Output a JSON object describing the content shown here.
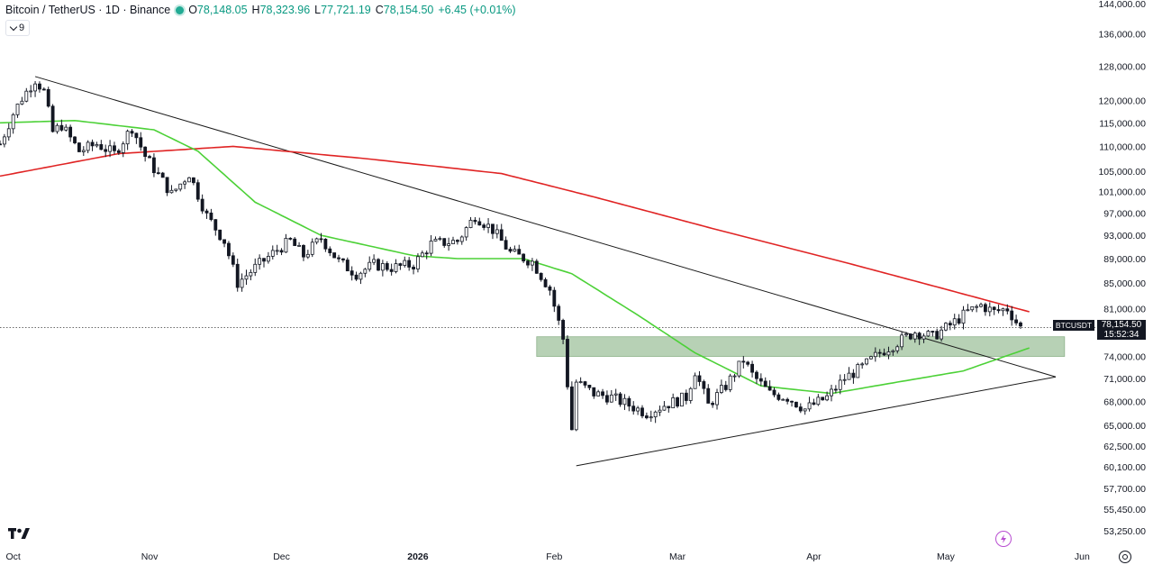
{
  "legend": {
    "title": "Bitcoin / TetherUS · 1D · Binance",
    "open_label": "O",
    "open": "78,148.05",
    "high_label": "H",
    "high": "78,323.96",
    "low_label": "L",
    "low": "77,721.19",
    "close_label": "C",
    "close": "78,154.50",
    "change": "+6.45 (+0.01%)"
  },
  "indicator_toggle": {
    "count": "9"
  },
  "price_tag": {
    "symbol": "BTCUSDT",
    "price": "78,154.50",
    "countdown": "15:52:34"
  },
  "colors": {
    "up": "#089981",
    "down": "#131722",
    "ma_long": "#e02424",
    "ma_short": "#4cd137",
    "zone": "#9fc29c",
    "trendline": "#1a1a1a",
    "accent": "#b84dd1"
  },
  "icons": {
    "logo": "tradingview-logo-icon",
    "quick": "lightning-icon",
    "settings": "gear-icon"
  },
  "chart_data": {
    "type": "candlestick",
    "scale": "log",
    "ylim": [
      52000,
      145000
    ],
    "x_range": [
      "2025-09-28",
      "2026-06-04"
    ],
    "y_ticks": [
      {
        "v": 53250,
        "label": "53,250.00"
      },
      {
        "v": 55450,
        "label": "55,450.00"
      },
      {
        "v": 57700,
        "label": "57,700.00"
      },
      {
        "v": 60100,
        "label": "60,100.00"
      },
      {
        "v": 62500,
        "label": "62,500.00"
      },
      {
        "v": 65000,
        "label": "65,000.00"
      },
      {
        "v": 68000,
        "label": "68,000.00"
      },
      {
        "v": 71000,
        "label": "71,000.00"
      },
      {
        "v": 74000,
        "label": "74,000.00"
      },
      {
        "v": 81000,
        "label": "81,000.00"
      },
      {
        "v": 85000,
        "label": "85,000.00"
      },
      {
        "v": 89000,
        "label": "89,000.00"
      },
      {
        "v": 93000,
        "label": "93,000.00"
      },
      {
        "v": 97000,
        "label": "97,000.00"
      },
      {
        "v": 101000,
        "label": "101,000.00"
      },
      {
        "v": 105000,
        "label": "105,000.00"
      },
      {
        "v": 110000,
        "label": "110,000.00"
      },
      {
        "v": 115000,
        "label": "115,000.00"
      },
      {
        "v": 120000,
        "label": "120,000.00"
      },
      {
        "v": 128000,
        "label": "128,000.00"
      },
      {
        "v": 136000,
        "label": "136,000.00"
      },
      {
        "v": 144000,
        "label": "144,000.00"
      }
    ],
    "x_ticks": [
      {
        "date": "2025-10-01",
        "label": "Oct",
        "bold": false
      },
      {
        "date": "2025-11-01",
        "label": "Nov",
        "bold": false
      },
      {
        "date": "2025-12-01",
        "label": "Dec",
        "bold": false
      },
      {
        "date": "2026-01-01",
        "label": "2026",
        "bold": true
      },
      {
        "date": "2026-02-01",
        "label": "Feb",
        "bold": false
      },
      {
        "date": "2026-03-01",
        "label": "Mar",
        "bold": false
      },
      {
        "date": "2026-04-01",
        "label": "Apr",
        "bold": false
      },
      {
        "date": "2026-05-01",
        "label": "May",
        "bold": false
      },
      {
        "date": "2026-06-01",
        "label": "Jun",
        "bold": false
      }
    ],
    "close_keypoints": [
      [
        "2025-09-28",
        110500
      ],
      [
        "2025-10-01",
        117000
      ],
      [
        "2025-10-03",
        120500
      ],
      [
        "2025-10-06",
        124800
      ],
      [
        "2025-10-08",
        122000
      ],
      [
        "2025-10-10",
        113000
      ],
      [
        "2025-10-12",
        114500
      ],
      [
        "2025-10-16",
        109000
      ],
      [
        "2025-10-20",
        110500
      ],
      [
        "2025-10-24",
        108500
      ],
      [
        "2025-10-28",
        114000
      ],
      [
        "2025-10-31",
        108000
      ],
      [
        "2025-11-04",
        103000
      ],
      [
        "2025-11-06",
        100500
      ],
      [
        "2025-11-10",
        104500
      ],
      [
        "2025-11-14",
        96500
      ],
      [
        "2025-11-18",
        92000
      ],
      [
        "2025-11-21",
        85000
      ],
      [
        "2025-11-25",
        87500
      ],
      [
        "2025-11-30",
        90500
      ],
      [
        "2025-12-03",
        92000
      ],
      [
        "2025-12-06",
        89500
      ],
      [
        "2025-12-10",
        92500
      ],
      [
        "2025-12-14",
        88500
      ],
      [
        "2025-12-18",
        86500
      ],
      [
        "2025-12-22",
        88000
      ],
      [
        "2025-12-26",
        87500
      ],
      [
        "2025-12-31",
        88000
      ],
      [
        "2026-01-04",
        91500
      ],
      [
        "2026-01-10",
        92000
      ],
      [
        "2026-01-14",
        96500
      ],
      [
        "2026-01-18",
        94000
      ],
      [
        "2026-01-22",
        90000
      ],
      [
        "2026-01-27",
        88500
      ],
      [
        "2026-01-31",
        84000
      ],
      [
        "2026-02-03",
        76500
      ],
      [
        "2026-02-05",
        64500
      ],
      [
        "2026-02-06",
        70500
      ],
      [
        "2026-02-10",
        69000
      ],
      [
        "2026-02-14",
        68500
      ],
      [
        "2026-02-18",
        67500
      ],
      [
        "2026-02-22",
        66500
      ],
      [
        "2026-02-26",
        67500
      ],
      [
        "2026-03-03",
        68500
      ],
      [
        "2026-03-05",
        72000
      ],
      [
        "2026-03-08",
        67500
      ],
      [
        "2026-03-12",
        70000
      ],
      [
        "2026-03-16",
        73500
      ],
      [
        "2026-03-18",
        71500
      ],
      [
        "2026-03-22",
        69000
      ],
      [
        "2026-03-26",
        68500
      ],
      [
        "2026-03-30",
        67000
      ],
      [
        "2026-04-04",
        68500
      ],
      [
        "2026-04-08",
        71000
      ],
      [
        "2026-04-12",
        72500
      ],
      [
        "2026-04-16",
        74500
      ],
      [
        "2026-04-20",
        76000
      ],
      [
        "2026-04-24",
        77500
      ],
      [
        "2026-04-28",
        76800
      ],
      [
        "2026-05-02",
        78500
      ],
      [
        "2026-05-06",
        80500
      ],
      [
        "2026-05-09",
        81500
      ],
      [
        "2026-05-12",
        80500
      ],
      [
        "2026-05-15",
        81000
      ],
      [
        "2026-05-17",
        79000
      ],
      [
        "2026-05-18",
        78154.5
      ]
    ],
    "ma_long": {
      "color": "#e02424",
      "points": [
        [
          "2025-09-28",
          104000
        ],
        [
          "2025-10-25",
          108500
        ],
        [
          "2025-11-20",
          110000
        ],
        [
          "2025-12-20",
          107500
        ],
        [
          "2026-01-20",
          104500
        ],
        [
          "2026-02-10",
          100000
        ],
        [
          "2026-03-10",
          94000
        ],
        [
          "2026-04-10",
          88000
        ],
        [
          "2026-05-01",
          84000
        ],
        [
          "2026-05-20",
          80500
        ]
      ]
    },
    "ma_short": {
      "color": "#4cd137",
      "points": [
        [
          "2025-09-28",
          115000
        ],
        [
          "2025-10-15",
          115500
        ],
        [
          "2025-11-02",
          113500
        ],
        [
          "2025-11-12",
          109000
        ],
        [
          "2025-11-25",
          99000
        ],
        [
          "2025-12-10",
          93000
        ],
        [
          "2025-12-31",
          89500
        ],
        [
          "2026-01-10",
          89000
        ],
        [
          "2026-01-25",
          89000
        ],
        [
          "2026-02-05",
          86500
        ],
        [
          "2026-02-20",
          80000
        ],
        [
          "2026-03-05",
          74500
        ],
        [
          "2026-03-20",
          70000
        ],
        [
          "2026-04-05",
          69000
        ],
        [
          "2026-04-20",
          70500
        ],
        [
          "2026-05-05",
          72000
        ],
        [
          "2026-05-20",
          75200
        ]
      ]
    },
    "trendlines": [
      {
        "name": "upper",
        "from": [
          "2025-10-06",
          125500
        ],
        "to": [
          "2026-05-26",
          71200
        ]
      },
      {
        "name": "lower",
        "from": [
          "2026-02-06",
          60200
        ],
        "to": [
          "2026-05-26",
          71200
        ]
      }
    ],
    "zone": {
      "from": "2026-01-28",
      "to": "2026-05-28",
      "low": 74000,
      "high": 76800
    },
    "last_price": 78154.5
  }
}
